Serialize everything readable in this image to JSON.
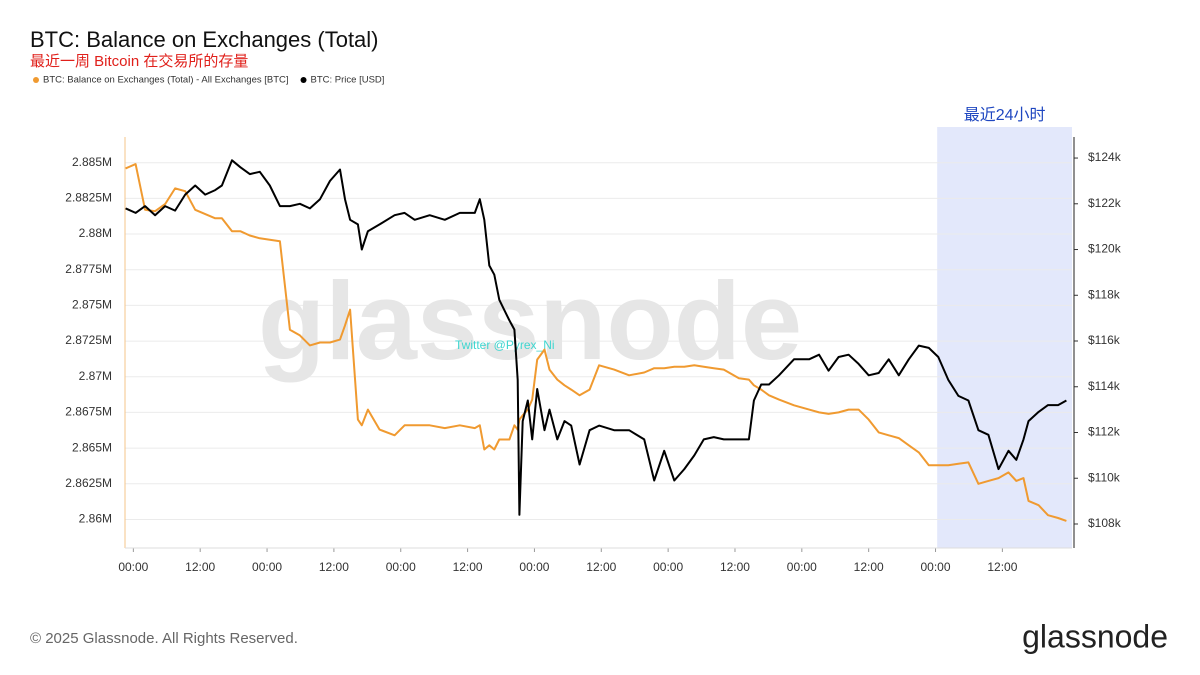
{
  "chart_data": {
    "type": "line",
    "title": "BTC: Balance on Exchanges (Total)",
    "subtitle": "最近一周 Bitcoin 在交易所的存量",
    "watermark": "glassnode",
    "annotation": "Twitter @Pyrex_Ni",
    "highlight": {
      "label": "最近24小时",
      "x": [
        144.3,
        168.5
      ],
      "color": "#e3e8fb"
    },
    "grid": true,
    "x": [
      -1.4,
      0.4,
      2.1,
      3.9,
      5.7,
      7.5,
      9.3,
      11.1,
      12.9,
      14.7,
      15.9,
      17.7,
      19.2,
      20.9,
      22.7,
      24.5,
      26.3,
      28.1,
      29.9,
      31.7,
      33.5,
      35.3,
      37.1,
      38.0,
      38.9,
      40.3,
      41.0,
      42.1,
      44.2,
      46.9,
      48.7,
      50.5,
      53.2,
      55.9,
      58.6,
      61.3,
      62.2,
      63.0,
      63.9,
      64.8,
      65.7,
      67.5,
      68.4,
      69.0,
      69.3,
      69.9,
      70.8,
      71.6,
      72.5,
      73.8,
      74.7,
      76.1,
      77.4,
      78.6,
      80.1,
      81.9,
      83.6,
      86.3,
      89.0,
      91.7,
      93.5,
      95.3,
      97.1,
      98.9,
      100.7,
      102.4,
      104.2,
      106.0,
      108.7,
      110.5,
      111.4,
      112.7,
      114.1,
      115.9,
      118.6,
      121.3,
      123.1,
      124.8,
      126.6,
      128.4,
      130.2,
      132.0,
      133.8,
      135.6,
      137.4,
      139.2,
      141.0,
      142.8,
      144.5,
      146.3,
      148.1,
      149.9,
      151.7,
      153.5,
      155.3,
      157.1,
      158.5,
      159.8,
      160.7,
      162.5,
      164.2,
      166.0,
      167.5
    ],
    "xlim": [
      -1.5,
      168.5
    ],
    "xticks": [
      {
        "value": 0,
        "label": "00:00"
      },
      {
        "value": 12,
        "label": "12:00"
      },
      {
        "value": 24,
        "label": "00:00"
      },
      {
        "value": 36,
        "label": "12:00"
      },
      {
        "value": 48,
        "label": "00:00"
      },
      {
        "value": 60,
        "label": "12:00"
      },
      {
        "value": 72,
        "label": "00:00"
      },
      {
        "value": 84,
        "label": "12:00"
      },
      {
        "value": 96,
        "label": "00:00"
      },
      {
        "value": 108,
        "label": "12:00"
      },
      {
        "value": 120,
        "label": "00:00"
      },
      {
        "value": 132,
        "label": "12:00"
      },
      {
        "value": 144,
        "label": "00:00"
      },
      {
        "value": 156,
        "label": "12:00"
      }
    ],
    "ylim": [
      2858000,
      2886800
    ],
    "yticks": [
      {
        "value": 2860000,
        "label": "2.86M"
      },
      {
        "value": 2862500,
        "label": "2.8625M"
      },
      {
        "value": 2865000,
        "label": "2.865M"
      },
      {
        "value": 2867500,
        "label": "2.8675M"
      },
      {
        "value": 2870000,
        "label": "2.87M"
      },
      {
        "value": 2872500,
        "label": "2.8725M"
      },
      {
        "value": 2875000,
        "label": "2.875M"
      },
      {
        "value": 2877500,
        "label": "2.8775M"
      },
      {
        "value": 2880000,
        "label": "2.88M"
      },
      {
        "value": 2882500,
        "label": "2.8825M"
      },
      {
        "value": 2885000,
        "label": "2.885M"
      }
    ],
    "y2lim": [
      106950,
      124920
    ],
    "y2ticks": [
      {
        "value": 108000,
        "label": "$108k"
      },
      {
        "value": 110000,
        "label": "$110k"
      },
      {
        "value": 112000,
        "label": "$112k"
      },
      {
        "value": 114000,
        "label": "$114k"
      },
      {
        "value": 116000,
        "label": "$116k"
      },
      {
        "value": 118000,
        "label": "$118k"
      },
      {
        "value": 120000,
        "label": "$120k"
      },
      {
        "value": 122000,
        "label": "$122k"
      },
      {
        "value": 124000,
        "label": "$124k"
      }
    ],
    "series": [
      {
        "name": "BTC: Balance on Exchanges (Total) - All Exchanges [BTC]",
        "color": "#f09a30",
        "values": [
          2884600,
          2884900,
          2881700,
          2881600,
          2882100,
          2883200,
          2883000,
          2881700,
          2881400,
          2881100,
          2881100,
          2880200,
          2880200,
          2879900,
          2879700,
          2879600,
          2879500,
          2873300,
          2872900,
          2872200,
          2872400,
          2872400,
          2872600,
          2873600,
          2874700,
          2867000,
          2866600,
          2867700,
          2866300,
          2865900,
          2866600,
          2866600,
          2866600,
          2866400,
          2866600,
          2866400,
          2866600,
          2864900,
          2865200,
          2864900,
          2865600,
          2865600,
          2866600,
          2866300,
          2867000,
          2867300,
          2867700,
          2868400,
          2871200,
          2871900,
          2870500,
          2869800,
          2869400,
          2869100,
          2868700,
          2869100,
          2870800,
          2870500,
          2870100,
          2870300,
          2870600,
          2870600,
          2870700,
          2870700,
          2870800,
          2870700,
          2870600,
          2870500,
          2869900,
          2869800,
          2869400,
          2869100,
          2868700,
          2868400,
          2868000,
          2867700,
          2867500,
          2867400,
          2867500,
          2867700,
          2867700,
          2867000,
          2866100,
          2865900,
          2865700,
          2865200,
          2864700,
          2863800,
          2863800,
          2863800,
          2863900,
          2864000,
          2862500,
          2862700,
          2862900,
          2863300,
          2862700,
          2862900,
          2861300,
          2861000,
          2860300,
          2860100,
          2859900
        ]
      },
      {
        "name": "BTC: Price [USD]",
        "color": "#000000",
        "axis": "y2",
        "values": [
          121800,
          121600,
          121900,
          121500,
          121900,
          121700,
          122400,
          122800,
          122400,
          122600,
          122800,
          123900,
          123600,
          123300,
          123400,
          122800,
          121900,
          121900,
          122000,
          121800,
          122200,
          123000,
          123500,
          122200,
          121300,
          121100,
          120000,
          120800,
          121100,
          121500,
          121600,
          121300,
          121500,
          121300,
          121600,
          121600,
          122200,
          121300,
          119300,
          118900,
          117800,
          116900,
          116500,
          114300,
          108400,
          112500,
          113400,
          111700,
          113900,
          112100,
          113000,
          111700,
          112500,
          112300,
          110600,
          112100,
          112300,
          112100,
          112100,
          111700,
          109900,
          111200,
          109900,
          110400,
          111000,
          111700,
          111800,
          111700,
          111700,
          111700,
          113400,
          114100,
          114100,
          114500,
          115200,
          115200,
          115400,
          114700,
          115300,
          115400,
          115000,
          114500,
          114600,
          115200,
          114500,
          115200,
          115800,
          115700,
          115300,
          114300,
          113600,
          113400,
          112100,
          111900,
          110400,
          111200,
          110800,
          111700,
          112500,
          112900,
          113200,
          113200,
          113400
        ]
      }
    ]
  },
  "footer": {
    "copyright": "© 2025 Glassnode. All Rights Reserved.",
    "logo": "glassnode"
  }
}
